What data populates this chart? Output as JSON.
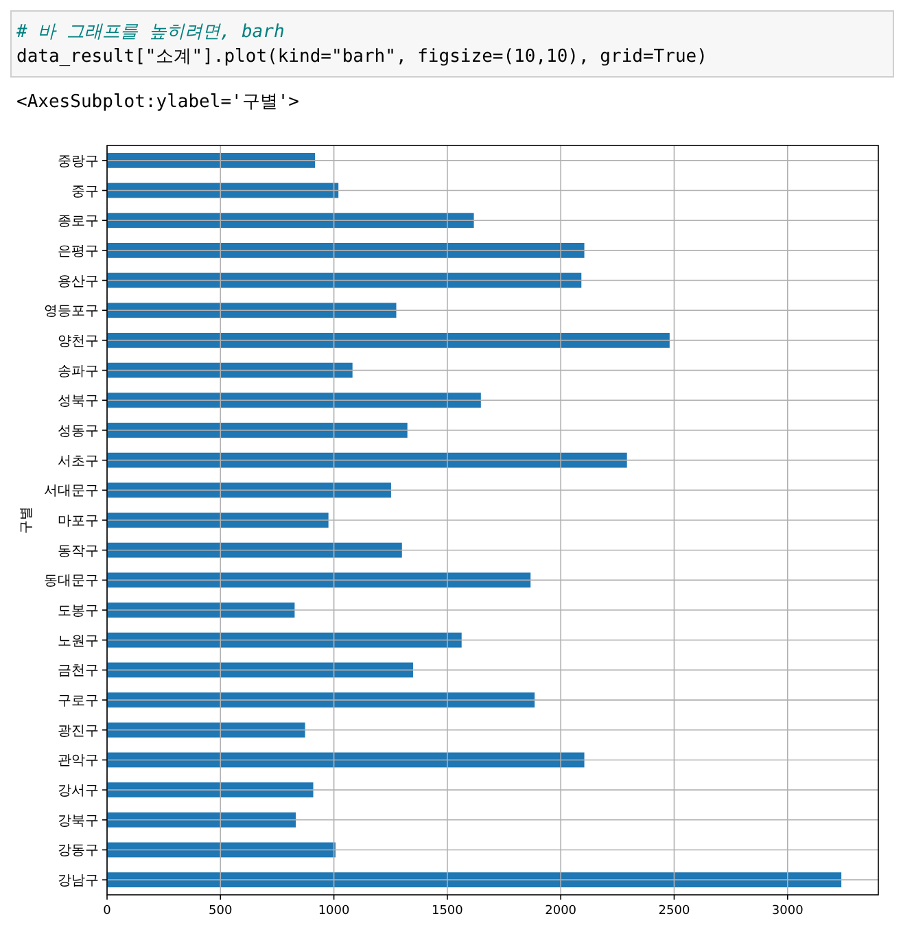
{
  "chart_data": {
    "type": "bar",
    "orientation": "horizontal",
    "ylabel": "구별",
    "annotations": [
      "# 바 그래프를 높히려면, barh",
      "data_result[\"소계\"].plot(kind=\"barh\", figsize=(10,10), grid=True)",
      "<AxesSubplot:ylabel='구별'>"
    ],
    "categories": [
      "중랑구",
      "중구",
      "종로구",
      "은평구",
      "용산구",
      "영등포구",
      "양천구",
      "송파구",
      "성북구",
      "성동구",
      "서초구",
      "서대문구",
      "마포구",
      "동작구",
      "동대문구",
      "도봉구",
      "노원구",
      "금천구",
      "구로구",
      "광진구",
      "관악구",
      "강서구",
      "강북구",
      "강동구",
      "강남구"
    ],
    "values": [
      917,
      1020,
      1617,
      2104,
      2091,
      1275,
      2480,
      1082,
      1648,
      1324,
      2292,
      1252,
      976,
      1300,
      1867,
      827,
      1563,
      1349,
      1885,
      873,
      2104,
      909,
      832,
      1007,
      3237
    ],
    "color": "#1f77b4",
    "xlim": [
      0,
      3400
    ],
    "xticks": [
      0,
      500,
      1000,
      1500,
      2000,
      2500,
      3000
    ],
    "grid": true
  }
}
